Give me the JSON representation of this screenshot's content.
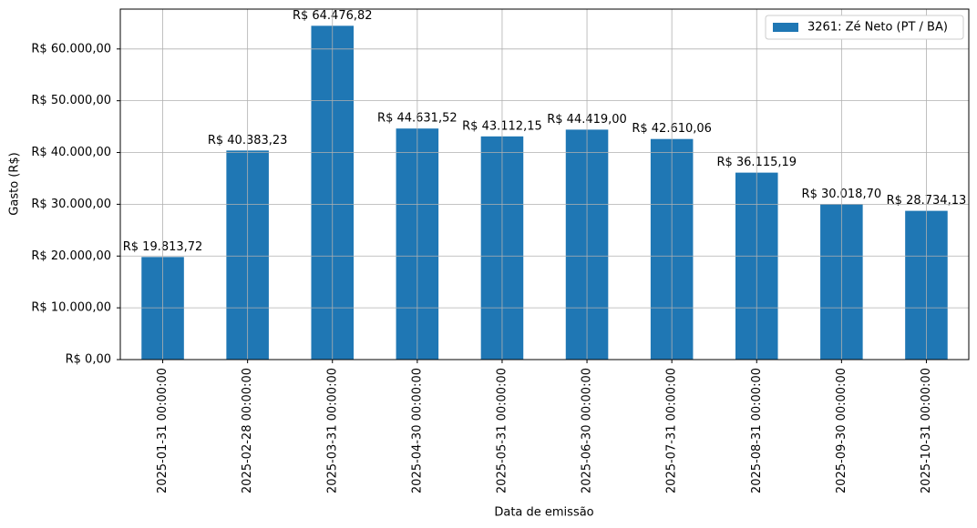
{
  "chart_data": {
    "type": "bar",
    "x_label": "Data de emissão",
    "y_label": "Gasto (R$)",
    "categories": [
      "2025-01-31 00:00:00",
      "2025-02-28 00:00:00",
      "2025-03-31 00:00:00",
      "2025-04-30 00:00:00",
      "2025-05-31 00:00:00",
      "2025-06-30 00:00:00",
      "2025-07-31 00:00:00",
      "2025-08-31 00:00:00",
      "2025-09-30 00:00:00",
      "2025-10-31 00:00:00"
    ],
    "series": [
      {
        "name": "3261: Zé Neto (PT / BA)",
        "color": "#1f77b4",
        "values": [
          19813.72,
          40383.23,
          64476.82,
          44631.52,
          43112.15,
          44419.0,
          42610.06,
          36115.19,
          30018.7,
          28734.13
        ],
        "value_labels": [
          "R$ 19.813,72",
          "R$ 40.383,23",
          "R$ 64.476,82",
          "R$ 44.631,52",
          "R$ 43.112,15",
          "R$ 44.419,00",
          "R$ 42.610,06",
          "R$ 36.115,19",
          "R$ 30.018,70",
          "R$ 28.734,13"
        ]
      }
    ],
    "ylim": [
      0,
      67700.66
    ],
    "yticks": [
      {
        "value": 0,
        "label": "R$ 0,00"
      },
      {
        "value": 10000,
        "label": "R$ 10.000,00"
      },
      {
        "value": 20000,
        "label": "R$ 20.000,00"
      },
      {
        "value": 30000,
        "label": "R$ 30.000,00"
      },
      {
        "value": 40000,
        "label": "R$ 40.000,00"
      },
      {
        "value": 50000,
        "label": "R$ 50.000,00"
      },
      {
        "value": 60000,
        "label": "R$ 60.000,00"
      }
    ],
    "grid": true,
    "legend": "upper right"
  }
}
